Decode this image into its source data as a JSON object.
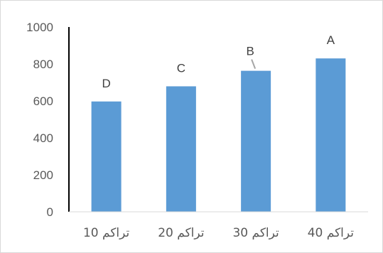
{
  "chart_data": {
    "type": "bar",
    "categories": [
      "تراكم 10",
      "تراكم 20",
      "تراكم 30",
      "تراكم 40"
    ],
    "values": [
      597,
      679,
      763,
      830
    ],
    "data_labels": [
      "D",
      "C",
      "B",
      "A"
    ],
    "ylim": [
      0,
      1000
    ],
    "yticks": [
      0,
      200,
      400,
      600,
      800,
      1000
    ],
    "grid": false,
    "legend": "none",
    "bar_color": "#5b9bd5"
  }
}
